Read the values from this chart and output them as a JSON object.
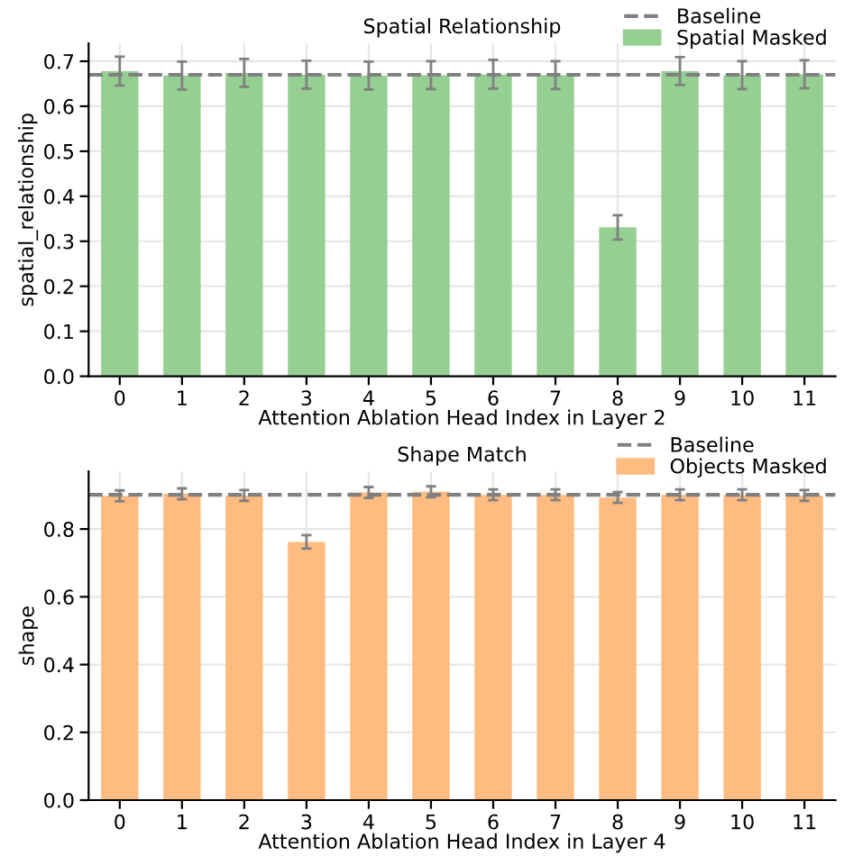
{
  "chart_data": [
    {
      "type": "bar",
      "title": "Spatial Relationship",
      "xlabel": "Attention Ablation Head Index in Layer 2",
      "ylabel": "spatial_relationship",
      "categories": [
        "0",
        "1",
        "2",
        "3",
        "4",
        "5",
        "6",
        "7",
        "8",
        "9",
        "10",
        "11"
      ],
      "series": [
        {
          "name": "Spatial Masked",
          "color": "#95cf92",
          "values": [
            0.678,
            0.668,
            0.674,
            0.67,
            0.668,
            0.669,
            0.671,
            0.669,
            0.331,
            0.678,
            0.669,
            0.671
          ],
          "errors": [
            0.032,
            0.031,
            0.031,
            0.031,
            0.031,
            0.031,
            0.032,
            0.031,
            0.027,
            0.031,
            0.031,
            0.031
          ]
        }
      ],
      "ref_lines": [
        {
          "axis": "y",
          "value": 0.67,
          "label": "Baseline",
          "color": "#808080",
          "line_style": "dashed"
        }
      ],
      "ylim": [
        0,
        0.74
      ],
      "yticks": [
        {
          "value": 0,
          "label": "0.0"
        },
        0.1,
        0.2,
        0.3,
        0.4,
        0.5,
        0.6,
        0.7
      ],
      "grid": true,
      "legend": "top right"
    },
    {
      "type": "bar",
      "title": "Shape Match",
      "xlabel": "Attention Ablation Head Index in Layer 4",
      "ylabel": "shape",
      "categories": [
        "0",
        "1",
        "2",
        "3",
        "4",
        "5",
        "6",
        "7",
        "8",
        "9",
        "10",
        "11"
      ],
      "series": [
        {
          "name": "Objects Masked",
          "color": "#ffbb80",
          "values": [
            0.898,
            0.904,
            0.899,
            0.762,
            0.908,
            0.91,
            0.901,
            0.901,
            0.893,
            0.901,
            0.901,
            0.899
          ],
          "errors": [
            0.016,
            0.016,
            0.016,
            0.02,
            0.016,
            0.016,
            0.016,
            0.016,
            0.016,
            0.016,
            0.016,
            0.016
          ]
        }
      ],
      "ref_lines": [
        {
          "axis": "y",
          "value": 0.901,
          "label": "Baseline",
          "color": "#808080",
          "line_style": "dashed"
        }
      ],
      "ylim": [
        0,
        0.97
      ],
      "yticks": [
        {
          "value": 0,
          "label": "0.0"
        },
        0.2,
        0.4,
        0.6,
        0.8
      ],
      "grid": true,
      "legend": "top right"
    }
  ]
}
